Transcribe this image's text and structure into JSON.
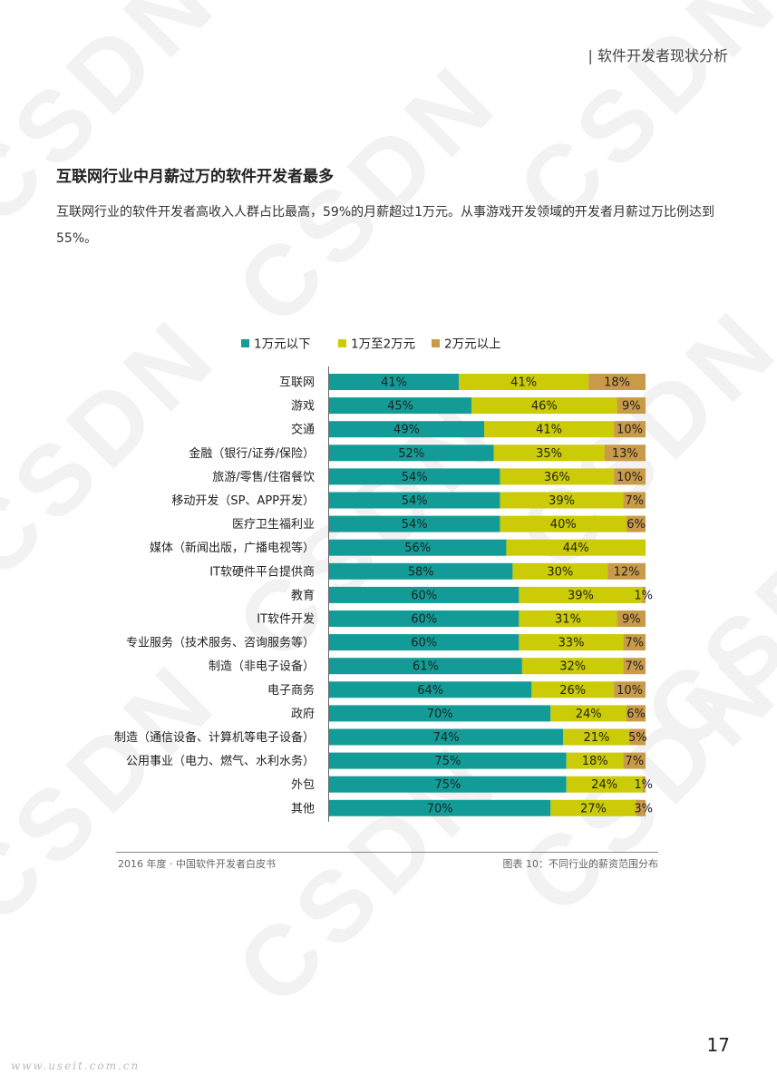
{
  "header": {
    "section_title": "| 软件开发者现状分析"
  },
  "heading": "互联网行业中月薪过万的软件开发者最多",
  "paragraph": "互联网行业的软件开发者高收入人群占比最高，59%的月薪超过1万元。从事游戏开发领域的开发者月薪过万比例达到55%。",
  "watermark_text": "CSDN",
  "colors": {
    "low": "#139c97",
    "mid": "#cbcb07",
    "high": "#c99a48",
    "axis": "#666666",
    "text": "#222222"
  },
  "chart_data": {
    "type": "bar",
    "orientation": "horizontal",
    "stacked": true,
    "categories": [
      "互联网",
      "游戏",
      "交通",
      "金融（银行/证券/保险）",
      "旅游/零售/住宿餐饮",
      "移动开发（SP、APP开发）",
      "医疗卫生福利业",
      "媒体（新闻出版，广播电视等）",
      "IT软硬件平台提供商",
      "教育",
      "IT软件开发",
      "专业服务（技术服务、咨询服务等）",
      "制造（非电子设备）",
      "电子商务",
      "政府",
      "制造（通信设备、计算机等电子设备）",
      "公用事业（电力、燃气、水利水务）",
      "外包",
      "其他"
    ],
    "series": [
      {
        "name": "1万元以下",
        "color": "#139c97",
        "values": [
          41,
          45,
          49,
          52,
          54,
          54,
          54,
          56,
          58,
          60,
          60,
          60,
          61,
          64,
          70,
          74,
          75,
          75,
          70
        ]
      },
      {
        "name": "1万至2万元",
        "color": "#cbcb07",
        "values": [
          41,
          46,
          41,
          35,
          36,
          39,
          40,
          44,
          30,
          39,
          31,
          33,
          32,
          26,
          24,
          21,
          18,
          24,
          27
        ]
      },
      {
        "name": "2万元以上",
        "color": "#c99a48",
        "values": [
          18,
          9,
          10,
          13,
          10,
          7,
          6,
          0,
          12,
          1,
          9,
          7,
          7,
          10,
          6,
          5,
          7,
          1,
          3
        ]
      }
    ],
    "value_suffix": "%",
    "legend_position": "top",
    "xlim": [
      0,
      100
    ]
  },
  "footer": {
    "left": "2016 年度 · 中国软件开发者白皮书",
    "right": "图表 10：不同行业的薪资范围分布"
  },
  "page_number": "17",
  "site_watermark": "www.useit.com.cn"
}
